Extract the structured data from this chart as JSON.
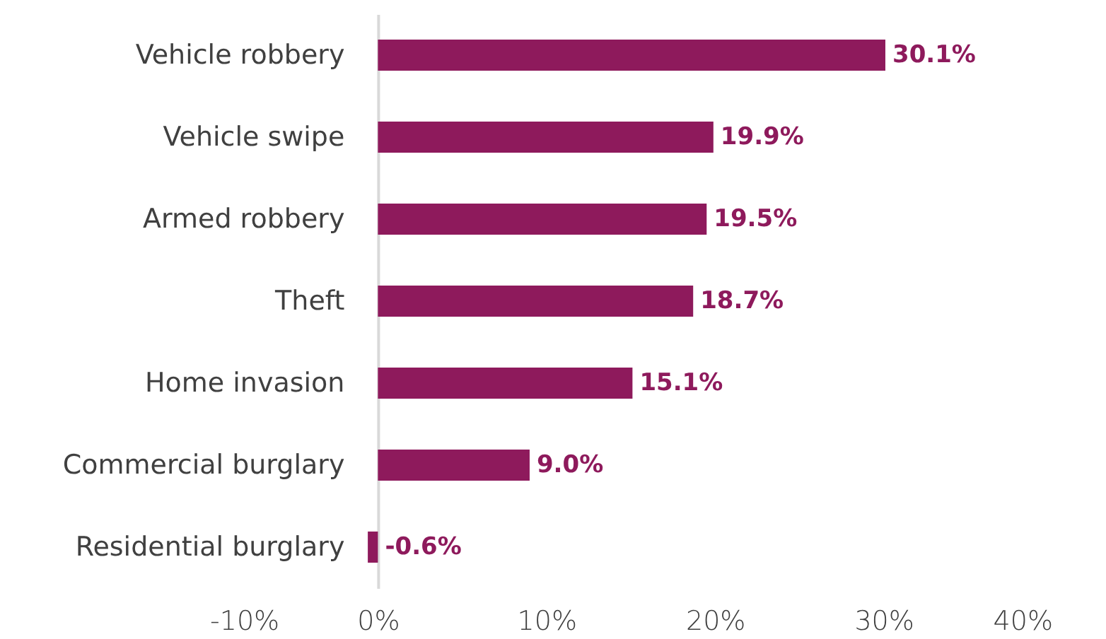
{
  "chart_data": {
    "type": "bar",
    "orientation": "horizontal",
    "categories": [
      "Vehicle robbery",
      "Vehicle swipe",
      "Armed robbery",
      "Theft",
      "Home invasion",
      "Commercial burglary",
      "Residential burglary"
    ],
    "values": [
      30.1,
      19.9,
      19.5,
      18.7,
      15.1,
      9.0,
      -0.6
    ],
    "value_labels": [
      "30.1%",
      "19.9%",
      "19.5%",
      "18.7%",
      "15.1%",
      "9.0%",
      "-0.6%"
    ],
    "color": "#8e1a5c",
    "xlim": [
      -10,
      40
    ],
    "xticks": [
      {
        "value": -10,
        "label": "-10%"
      },
      {
        "value": 0,
        "label": "0%"
      },
      {
        "value": 10,
        "label": "10%"
      },
      {
        "value": 20,
        "label": "20%"
      },
      {
        "value": 30,
        "label": "30%"
      },
      {
        "value": 40,
        "label": "40%"
      }
    ],
    "grid": false
  }
}
